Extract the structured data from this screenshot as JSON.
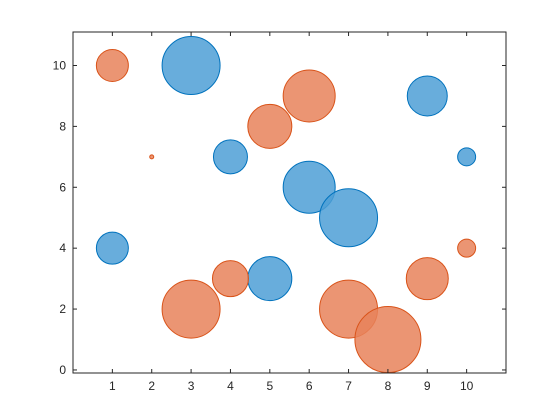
{
  "chart_data": {
    "type": "scatter",
    "title": "",
    "xlabel": "",
    "ylabel": "",
    "xlim": [
      0,
      11
    ],
    "ylim": [
      -0.1,
      11.1
    ],
    "xticks": [
      1,
      2,
      3,
      4,
      5,
      6,
      7,
      8,
      9,
      10
    ],
    "yticks": [
      0,
      2,
      4,
      6,
      8,
      10
    ],
    "grid": false,
    "legend": "none",
    "bubble_size_unit": "relative radius",
    "series": [
      {
        "color": "#0072BD",
        "fill": "#4d9fd6",
        "points": [
          {
            "x": 1,
            "y": 4,
            "size": 16
          },
          {
            "x": 3,
            "y": 10,
            "size": 29
          },
          {
            "x": 4,
            "y": 7,
            "size": 17
          },
          {
            "x": 5,
            "y": 3,
            "size": 22
          },
          {
            "x": 6,
            "y": 6,
            "size": 26
          },
          {
            "x": 7,
            "y": 5,
            "size": 29
          },
          {
            "x": 9,
            "y": 9,
            "size": 20
          },
          {
            "x": 10,
            "y": 7,
            "size": 9
          }
        ]
      },
      {
        "color": "#D95319",
        "fill": "#e8825a",
        "points": [
          {
            "x": 1,
            "y": 10,
            "size": 16
          },
          {
            "x": 2,
            "y": 7,
            "size": 2
          },
          {
            "x": 3,
            "y": 2,
            "size": 29
          },
          {
            "x": 4,
            "y": 3,
            "size": 18
          },
          {
            "x": 5,
            "y": 8,
            "size": 22
          },
          {
            "x": 6,
            "y": 9,
            "size": 26
          },
          {
            "x": 7,
            "y": 2,
            "size": 29
          },
          {
            "x": 8,
            "y": 1,
            "size": 33
          },
          {
            "x": 9,
            "y": 3,
            "size": 21
          },
          {
            "x": 10,
            "y": 4,
            "size": 9
          }
        ]
      }
    ]
  }
}
